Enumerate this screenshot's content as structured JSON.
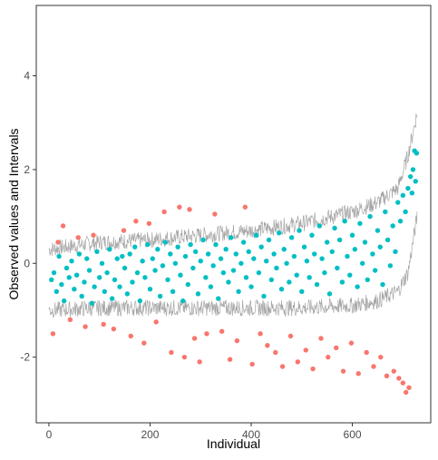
{
  "chart_data": {
    "type": "scatter",
    "title": "",
    "xlabel": "Individual",
    "ylabel": "Observed values and Intervals",
    "xlim": [
      -25,
      755
    ],
    "ylim": [
      -3.4,
      5.5
    ],
    "x_ticks": [
      0,
      200,
      400,
      600
    ],
    "y_ticks": [
      -2,
      0,
      2,
      4
    ],
    "x_tick_labels": [
      "0",
      "200",
      "400",
      "600"
    ],
    "y_tick_labels": [
      "-2",
      "0",
      "2",
      "4"
    ],
    "n_individuals": 728,
    "grid": false,
    "legend": "none",
    "colors": {
      "inside_points": "#00BFC4",
      "outside_points": "#F8766D",
      "interval_lines": "#A6A6A6",
      "panel_border": "#333333",
      "tick_text": "#4d4d4d",
      "background": "#ffffff"
    },
    "interval_bounds": {
      "x": [
        0,
        100,
        200,
        300,
        400,
        500,
        600,
        650,
        690,
        710,
        728
      ],
      "upper": [
        0.3,
        0.45,
        0.5,
        0.6,
        0.7,
        0.85,
        1.1,
        1.3,
        1.6,
        2.3,
        3.2
      ],
      "lower": [
        -1.0,
        -0.95,
        -0.95,
        -0.95,
        -0.95,
        -0.95,
        -0.9,
        -0.8,
        -0.6,
        -0.2,
        1.0
      ]
    },
    "series": [
      {
        "status": "inside interval",
        "points": [
          [
            5,
            -0.35
          ],
          [
            10,
            -0.2
          ],
          [
            15,
            -0.6
          ],
          [
            20,
            0.15
          ],
          [
            25,
            -0.45
          ],
          [
            30,
            -0.8
          ],
          [
            35,
            -0.1
          ],
          [
            40,
            -0.3
          ],
          [
            45,
            0.05
          ],
          [
            50,
            -0.55
          ],
          [
            55,
            -0.25
          ],
          [
            60,
            0.2
          ],
          [
            65,
            -0.7
          ],
          [
            70,
            -0.4
          ],
          [
            75,
            0.1
          ],
          [
            80,
            -0.15
          ],
          [
            85,
            -0.85
          ],
          [
            90,
            -0.5
          ],
          [
            95,
            0.25
          ],
          [
            100,
            -0.3
          ],
          [
            105,
            0.0
          ],
          [
            110,
            -0.6
          ],
          [
            115,
            -0.2
          ],
          [
            120,
            0.3
          ],
          [
            125,
            -0.75
          ],
          [
            130,
            -0.35
          ],
          [
            135,
            0.1
          ],
          [
            140,
            -0.5
          ],
          [
            145,
            0.15
          ],
          [
            150,
            -0.1
          ],
          [
            155,
            -0.65
          ],
          [
            160,
            0.2
          ],
          [
            165,
            -0.4
          ],
          [
            170,
            0.35
          ],
          [
            175,
            -0.2
          ],
          [
            180,
            -0.8
          ],
          [
            185,
            0.05
          ],
          [
            190,
            -0.3
          ],
          [
            195,
            0.4
          ],
          [
            200,
            -0.55
          ],
          [
            205,
            0.1
          ],
          [
            210,
            -0.15
          ],
          [
            215,
            0.3
          ],
          [
            220,
            -0.7
          ],
          [
            225,
            -0.05
          ],
          [
            230,
            0.45
          ],
          [
            235,
            -0.35
          ],
          [
            240,
            0.2
          ],
          [
            245,
            -0.6
          ],
          [
            250,
            0.0
          ],
          [
            255,
            0.35
          ],
          [
            260,
            -0.25
          ],
          [
            265,
            -0.8
          ],
          [
            270,
            0.15
          ],
          [
            275,
            -0.45
          ],
          [
            280,
            0.4
          ],
          [
            285,
            -0.1
          ],
          [
            290,
            0.25
          ],
          [
            295,
            -0.65
          ],
          [
            300,
            0.05
          ],
          [
            305,
            0.5
          ],
          [
            310,
            -0.3
          ],
          [
            315,
            0.2
          ],
          [
            320,
            -0.5
          ],
          [
            325,
            -0.05
          ],
          [
            330,
            0.4
          ],
          [
            335,
            -0.75
          ],
          [
            340,
            0.1
          ],
          [
            345,
            -0.2
          ],
          [
            350,
            0.3
          ],
          [
            355,
            -0.4
          ],
          [
            360,
            0.55
          ],
          [
            365,
            -0.15
          ],
          [
            370,
            0.2
          ],
          [
            375,
            -0.6
          ],
          [
            380,
            0.0
          ],
          [
            385,
            0.45
          ],
          [
            390,
            -0.3
          ],
          [
            395,
            0.25
          ],
          [
            400,
            -0.5
          ],
          [
            405,
            0.1
          ],
          [
            410,
            0.6
          ],
          [
            415,
            -0.2
          ],
          [
            420,
            0.35
          ],
          [
            425,
            -0.7
          ],
          [
            430,
            0.05
          ],
          [
            435,
            0.5
          ],
          [
            440,
            -0.35
          ],
          [
            445,
            0.2
          ],
          [
            450,
            -0.1
          ],
          [
            455,
            0.65
          ],
          [
            460,
            -0.55
          ],
          [
            465,
            0.3
          ],
          [
            470,
            0.0
          ],
          [
            475,
            -0.4
          ],
          [
            480,
            0.55
          ],
          [
            485,
            0.15
          ],
          [
            490,
            -0.25
          ],
          [
            495,
            0.7
          ],
          [
            500,
            -0.6
          ],
          [
            505,
            0.35
          ],
          [
            510,
            0.05
          ],
          [
            515,
            -0.3
          ],
          [
            520,
            0.6
          ],
          [
            525,
            0.2
          ],
          [
            530,
            -0.45
          ],
          [
            535,
            0.8
          ],
          [
            540,
            0.1
          ],
          [
            545,
            -0.2
          ],
          [
            550,
            0.45
          ],
          [
            555,
            -0.65
          ],
          [
            560,
            0.25
          ],
          [
            565,
            0.75
          ],
          [
            570,
            -0.1
          ],
          [
            575,
            0.5
          ],
          [
            580,
            -0.4
          ],
          [
            585,
            0.9
          ],
          [
            590,
            0.15
          ],
          [
            595,
            -0.25
          ],
          [
            600,
            0.6
          ],
          [
            605,
            0.3
          ],
          [
            610,
            -0.5
          ],
          [
            615,
            0.85
          ],
          [
            620,
            0.0
          ],
          [
            625,
            0.45
          ],
          [
            630,
            -0.35
          ],
          [
            635,
            1.0
          ],
          [
            640,
            0.2
          ],
          [
            645,
            -0.15
          ],
          [
            650,
            0.7
          ],
          [
            655,
            0.35
          ],
          [
            660,
            -0.45
          ],
          [
            665,
            1.1
          ],
          [
            670,
            0.5
          ],
          [
            675,
            -0.05
          ],
          [
            680,
            0.8
          ],
          [
            685,
            0.25
          ],
          [
            690,
            1.3
          ],
          [
            695,
            0.9
          ],
          [
            700,
            1.45
          ],
          [
            705,
            1.1
          ],
          [
            710,
            1.6
          ],
          [
            715,
            1.85
          ],
          [
            718,
            1.5
          ],
          [
            720,
            2.0
          ],
          [
            723,
            2.4
          ],
          [
            725,
            1.75
          ],
          [
            727,
            2.35
          ]
        ]
      },
      {
        "status": "outside interval",
        "points": [
          [
            8,
            -1.5
          ],
          [
            18,
            0.45
          ],
          [
            28,
            0.8
          ],
          [
            42,
            -1.2
          ],
          [
            58,
            0.55
          ],
          [
            72,
            -1.35
          ],
          [
            88,
            0.6
          ],
          [
            108,
            -1.3
          ],
          [
            128,
            -1.4
          ],
          [
            148,
            0.7
          ],
          [
            162,
            -1.55
          ],
          [
            172,
            0.9
          ],
          [
            188,
            -1.7
          ],
          [
            198,
            0.85
          ],
          [
            212,
            -1.25
          ],
          [
            228,
            1.1
          ],
          [
            242,
            -1.9
          ],
          [
            258,
            1.2
          ],
          [
            268,
            -2.0
          ],
          [
            278,
            1.15
          ],
          [
            288,
            -1.6
          ],
          [
            298,
            -2.1
          ],
          [
            312,
            -1.5
          ],
          [
            328,
            1.05
          ],
          [
            342,
            -1.45
          ],
          [
            358,
            -2.05
          ],
          [
            372,
            -1.65
          ],
          [
            388,
            1.2
          ],
          [
            402,
            -2.15
          ],
          [
            418,
            -1.5
          ],
          [
            432,
            -1.75
          ],
          [
            448,
            -1.9
          ],
          [
            462,
            -2.2
          ],
          [
            478,
            -1.55
          ],
          [
            492,
            -2.1
          ],
          [
            508,
            -1.85
          ],
          [
            522,
            -2.25
          ],
          [
            538,
            -1.6
          ],
          [
            552,
            -2.0
          ],
          [
            568,
            -1.8
          ],
          [
            582,
            -2.3
          ],
          [
            598,
            -1.7
          ],
          [
            612,
            -2.35
          ],
          [
            628,
            -1.9
          ],
          [
            642,
            -2.2
          ],
          [
            656,
            -2.0
          ],
          [
            668,
            -2.4
          ],
          [
            682,
            -2.3
          ],
          [
            692,
            -2.45
          ],
          [
            700,
            -2.55
          ],
          [
            706,
            -2.75
          ],
          [
            712,
            -2.65
          ]
        ]
      }
    ]
  }
}
